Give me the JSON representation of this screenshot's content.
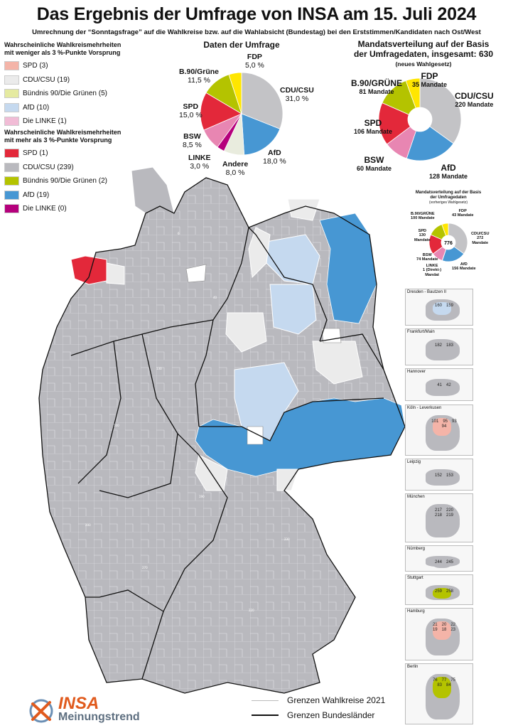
{
  "title": "Das Ergebnis der Umfrage von INSA am 15. Juli 2024",
  "subtitle": "Umrechnung der “Sonntagsfrage” auf die Wahlkreise bzw. auf die Wahlabsicht (Bundestag) bei den Erststimmen/Kandidaten nach Ost/West",
  "legend_low": {
    "heading_line1": "Wahrscheinliche Wahlkreismehrheiten",
    "heading_line2": "mit weniger als 3 %-Punkte Vorsprung",
    "items": [
      {
        "label": "SPD (3)",
        "color": "#f4b4a8"
      },
      {
        "label": "CDU/CSU (19)",
        "color": "#ebebeb"
      },
      {
        "label": "Bündnis 90/Die Grünen (5)",
        "color": "#e5eaa0"
      },
      {
        "label": "AfD (10)",
        "color": "#c5d9ef"
      },
      {
        "label": "Die LINKE (1)",
        "color": "#f1bcd6"
      }
    ]
  },
  "legend_high": {
    "heading_line1": "Wahrscheinliche Wahlkreismehrheiten",
    "heading_line2": "mit mehr als 3 %-Punkte Vorsprung",
    "items": [
      {
        "label": "SPD (1)",
        "color": "#e3283a"
      },
      {
        "label": "CDU/CSU (239)",
        "color": "#b9b9be"
      },
      {
        "label": "Bündnis 90/Die Grünen (2)",
        "color": "#b4c300"
      },
      {
        "label": "AfD (19)",
        "color": "#4797d3"
      },
      {
        "label": "Die LINKE (0)",
        "color": "#b5007c"
      }
    ]
  },
  "survey_pie": {
    "title": "Daten der Umfrage",
    "slices": [
      {
        "name": "CDU/CSU",
        "value": 31.0,
        "value_label": "31,0 %",
        "color": "#c3c3c6"
      },
      {
        "name": "AfD",
        "value": 18.0,
        "value_label": "18,0 %",
        "color": "#4797d3"
      },
      {
        "name": "Andere",
        "value": 8.0,
        "value_label": "8,0 %",
        "color": "#e9ecde"
      },
      {
        "name": "LINKE",
        "value": 3.0,
        "value_label": "3,0 %",
        "color": "#b5007c"
      },
      {
        "name": "BSW",
        "value": 8.5,
        "value_label": "8,5 %",
        "color": "#e886b2"
      },
      {
        "name": "SPD",
        "value": 15.0,
        "value_label": "15,0 %",
        "color": "#e3283a"
      },
      {
        "name": "B.90/Grüne",
        "value": 11.5,
        "value_label": "11,5 %",
        "color": "#b4c300"
      },
      {
        "name": "FDP",
        "value": 5.0,
        "value_label": "5,0 %",
        "color": "#ffe600"
      }
    ]
  },
  "seat_pie": {
    "title_line1": "Mandatsverteilung auf der Basis",
    "title_line2": "der Umfragedaten, insgesamt: 630",
    "title_line3": "(neues Wahlgesetz)",
    "unit": "Mandate",
    "slices": [
      {
        "name": "CDU/CSU",
        "value": 220,
        "color": "#c3c3c6"
      },
      {
        "name": "AfD",
        "value": 128,
        "color": "#4797d3"
      },
      {
        "name": "BSW",
        "value": 60,
        "color": "#e886b2"
      },
      {
        "name": "SPD",
        "value": 106,
        "color": "#e3283a"
      },
      {
        "name": "B.90/GRÜNE",
        "value": 81,
        "color": "#b4c300"
      },
      {
        "name": "FDP",
        "value": 35,
        "color": "#ffe600"
      }
    ]
  },
  "seat_pie_old": {
    "title_line1": "Mandatsverteilung auf der Basis",
    "title_line2": "der Umfragedaten",
    "title_line3": "(vorheriges Wahlgesetz)",
    "total": "776",
    "slices": [
      {
        "name": "CDU/CSU",
        "value": 272,
        "color": "#c3c3c6"
      },
      {
        "name": "AfD",
        "value": 156,
        "color": "#4797d3"
      },
      {
        "name": "LINKE",
        "value": 1,
        "color": "#b5007c"
      },
      {
        "name": "BSW",
        "value": 74,
        "color": "#e886b2"
      },
      {
        "name": "SPD",
        "value": 130,
        "color": "#e3283a"
      },
      {
        "name": "B.90/GRÜNE",
        "value": 100,
        "color": "#b4c300"
      },
      {
        "name": "FDP",
        "value": 43,
        "color": "#ffe600"
      }
    ],
    "labels": {
      "fdp": [
        "FDP",
        "43 Mandate"
      ],
      "cdu": [
        "CDU/CSU",
        "272",
        "Mandate"
      ],
      "afd": [
        "AfD",
        "156 Mandate"
      ],
      "linke": [
        "LINKE",
        "1 (Direkt-)",
        "Mandat"
      ],
      "bsw": [
        "BSW",
        "74 Mandate"
      ],
      "spd": [
        "SPD",
        "130",
        "Mandate"
      ],
      "gruene": [
        "B.90/GRÜNE",
        "100 Mandate"
      ]
    }
  },
  "insets": [
    {
      "name": "Dresden - Bautzen II",
      "numbers": [
        "160",
        "159"
      ]
    },
    {
      "name": "Frankfurt/Main",
      "numbers": [
        "182",
        "183"
      ]
    },
    {
      "name": "Hannover",
      "numbers": [
        "41",
        "42"
      ]
    },
    {
      "name": "Köln - Leverkusen",
      "numbers": [
        "101",
        "95",
        "93",
        "94"
      ]
    },
    {
      "name": "Leipzig",
      "numbers": [
        "152",
        "153"
      ]
    },
    {
      "name": "München",
      "numbers": [
        "217",
        "220",
        "218",
        "219"
      ]
    },
    {
      "name": "Nürnberg",
      "numbers": [
        "244",
        "245"
      ]
    },
    {
      "name": "Stuttgart",
      "numbers": [
        "259",
        "258"
      ]
    },
    {
      "name": "Hamburg",
      "numbers": [
        "21",
        "20",
        "22",
        "19",
        "18",
        "23"
      ]
    },
    {
      "name": "Berlin",
      "numbers": [
        "76",
        "77",
        "75",
        "83",
        "84"
      ]
    }
  ],
  "boundaries": {
    "districts": "Grenzen Wahlkreise 2021",
    "states": "Grenzen Bundesländer"
  },
  "logo": {
    "brand": "INSA",
    "tagline": "Meinungstrend"
  }
}
